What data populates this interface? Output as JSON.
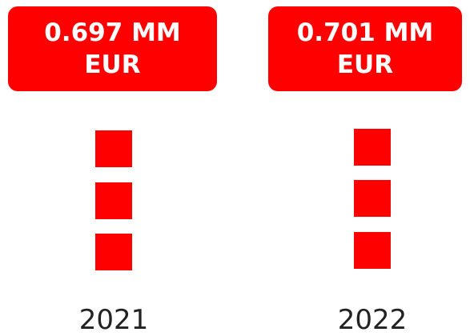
{
  "chart_data": {
    "type": "pictogram",
    "categories": [
      "2021",
      "2022"
    ],
    "values": [
      0.697,
      0.701
    ],
    "value_labels": [
      "0.697 MM EUR",
      "0.701 MM EUR"
    ],
    "color": "#ff0000"
  }
}
